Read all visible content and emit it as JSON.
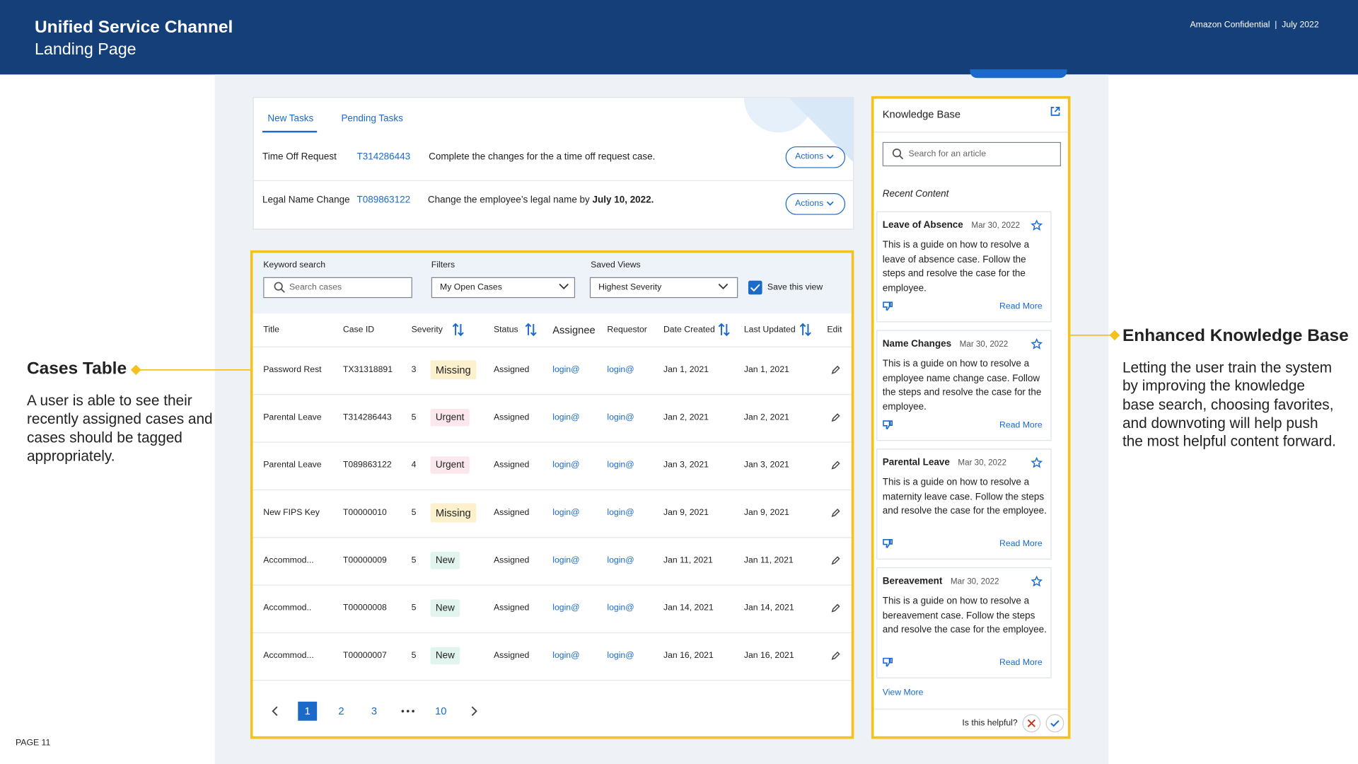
{
  "header": {
    "title": "Unified Service Channel",
    "subtitle": "Landing Page",
    "confidential": "Amazon Confidential",
    "separator": "|",
    "date": "July 2022"
  },
  "page_number": "PAGE 11",
  "tasks": {
    "tabs": [
      "New Tasks",
      "Pending Tasks"
    ],
    "rows": [
      {
        "type": "Time Off Request",
        "id": "T314286443",
        "description": "Complete the changes for the a time off request case.",
        "action": "Actions"
      },
      {
        "type": "Legal Name Change",
        "id": "T089863122",
        "description": "Change the employee’s legal name by",
        "description_bold": "July 10, 2022.",
        "action": "Actions"
      }
    ]
  },
  "filters": {
    "keyword_label": "Keyword search",
    "keyword_placeholder": "Search cases",
    "filters_label": "Filters",
    "filters_value": "My Open Cases",
    "saved_label": "Saved Views",
    "saved_value": "Highest Severity",
    "save_view": "Save this view"
  },
  "table": {
    "headers": [
      "Title",
      "Case ID",
      "Severity",
      "Status",
      "Assignee",
      "Requestor",
      "Date Created",
      "Last Updated",
      "Edit"
    ],
    "rows": [
      {
        "title": "Password Rest",
        "case_id": "TX31318891",
        "severity": 3,
        "tag": "Missing",
        "status": "Assigned",
        "assignee": "login@",
        "requestor": "login@",
        "created": "Jan 1, 2021",
        "updated": "Jan 1, 2021"
      },
      {
        "title": "Parental Leave",
        "case_id": "T314286443",
        "severity": 5,
        "tag": "Urgent",
        "status": "Assigned",
        "assignee": "login@",
        "requestor": "login@",
        "created": "Jan 2, 2021",
        "updated": "Jan 2, 2021"
      },
      {
        "title": "Parental Leave",
        "case_id": "T089863122",
        "severity": 4,
        "tag": "Urgent",
        "status": "Assigned",
        "assignee": "login@",
        "requestor": "login@",
        "created": "Jan 3, 2021",
        "updated": "Jan 3, 2021"
      },
      {
        "title": "New FIPS Key",
        "case_id": "T00000010",
        "severity": 5,
        "tag": "Missing",
        "status": "Assigned",
        "assignee": "login@",
        "requestor": "login@",
        "created": "Jan 9, 2021",
        "updated": "Jan 9, 2021"
      },
      {
        "title": "Accommod...",
        "case_id": "T00000009",
        "severity": 5,
        "tag": "New",
        "status": "Assigned",
        "assignee": "login@",
        "requestor": "login@",
        "created": "Jan 11, 2021",
        "updated": "Jan 11, 2021"
      },
      {
        "title": "Accommod..",
        "case_id": "T00000008",
        "severity": 5,
        "tag": "New",
        "status": "Assigned",
        "assignee": "login@",
        "requestor": "login@",
        "created": "Jan 14, 2021",
        "updated": "Jan 14, 2021"
      },
      {
        "title": "Accommod...",
        "case_id": "T00000007",
        "severity": 5,
        "tag": "New",
        "status": "Assigned",
        "assignee": "login@",
        "requestor": "login@",
        "created": "Jan 16, 2021",
        "updated": "Jan 16, 2021"
      }
    ]
  },
  "pagination": {
    "pages": [
      1,
      2,
      3,
      10
    ]
  },
  "knowledge_base": {
    "title": "Knowledge Base",
    "search_placeholder": "Search for an article",
    "recent_label": "Recent Content",
    "articles": [
      {
        "title": "Leave of Absence",
        "date": "Mar 30, 2022",
        "body": "This is a guide on how to resolve a leave of absence case. Follow the steps and resolve the case for the employee.",
        "link": "Read More"
      },
      {
        "title": "Name Changes",
        "date": "Mar 30, 2022",
        "body": "This is a guide on how to resolve a employee name change case. Follow the steps and resolve the case for the employee.",
        "link": "Read More"
      },
      {
        "title": "Parental Leave",
        "date": "Mar 30, 2022",
        "body": "This is a guide on how to resolve a maternity leave case. Follow the steps and resolve the case for the employee.",
        "link": "Read More"
      },
      {
        "title": "Bereavement",
        "date": "Mar 30, 2022",
        "body": "This is a guide on how to resolve a bereavement case. Follow the steps and resolve the case for the employee.",
        "link": "Read More"
      }
    ],
    "view_more": "View More",
    "helpful": "Is this helpful?"
  },
  "annotations": {
    "left": {
      "title": "Cases Table",
      "body": "A user is able to see their recently assigned cases and cases should be tagged appropriately."
    },
    "right": {
      "title": "Enhanced Knowledge Base",
      "body": "Letting the user train the system by improving the knowledge base search, choosing favorites, and downvoting will help push the most helpful content forward."
    }
  }
}
